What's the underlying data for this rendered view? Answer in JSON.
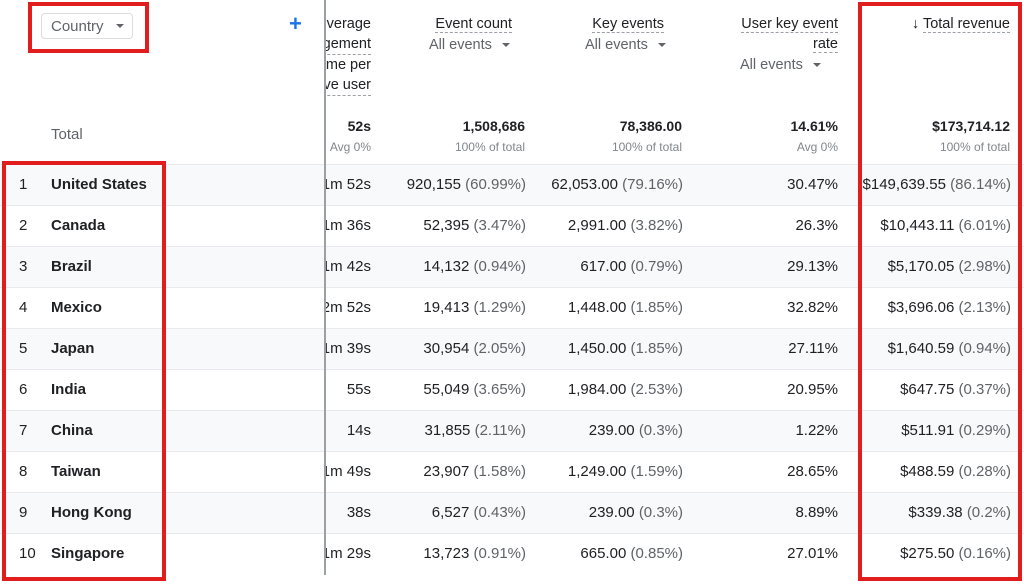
{
  "dimension": {
    "label": "Country"
  },
  "headers": {
    "engagement": [
      "verage",
      "gement",
      "me per",
      "ve user"
    ],
    "event_count": {
      "title": "Event count",
      "filter": "All events"
    },
    "key_events": {
      "title": "Key events",
      "filter": "All events"
    },
    "user_key_event_rate": {
      "title_l1": "User key event",
      "title_l2": "rate",
      "filter": "All events"
    },
    "total_revenue": {
      "arrow": "↓",
      "title": "Total revenue"
    }
  },
  "totals": {
    "label": "Total",
    "engagement": {
      "value": "52s",
      "sub": "Avg 0%"
    },
    "event_count": {
      "value": "1,508,686",
      "sub": "100% of total"
    },
    "key_events": {
      "value": "78,386.00",
      "sub": "100% of total"
    },
    "rate": {
      "value": "14.61%",
      "sub": "Avg 0%"
    },
    "revenue": {
      "value": "$173,714.12",
      "sub": "100% of total"
    }
  },
  "rows": [
    {
      "idx": "1",
      "country": "United States",
      "eng": "1m 52s",
      "ec": "920,155",
      "ecp": "(60.99%)",
      "ke": "62,053.00",
      "kep": "(79.16%)",
      "rate": "30.47%",
      "rev": "$149,639.55",
      "revp": "(86.14%)"
    },
    {
      "idx": "2",
      "country": "Canada",
      "eng": "1m 36s",
      "ec": "52,395",
      "ecp": "(3.47%)",
      "ke": "2,991.00",
      "kep": "(3.82%)",
      "rate": "26.3%",
      "rev": "$10,443.11",
      "revp": "(6.01%)"
    },
    {
      "idx": "3",
      "country": "Brazil",
      "eng": "1m 42s",
      "ec": "14,132",
      "ecp": "(0.94%)",
      "ke": "617.00",
      "kep": "(0.79%)",
      "rate": "29.13%",
      "rev": "$5,170.05",
      "revp": "(2.98%)"
    },
    {
      "idx": "4",
      "country": "Mexico",
      "eng": "2m 52s",
      "ec": "19,413",
      "ecp": "(1.29%)",
      "ke": "1,448.00",
      "kep": "(1.85%)",
      "rate": "32.82%",
      "rev": "$3,696.06",
      "revp": "(2.13%)"
    },
    {
      "idx": "5",
      "country": "Japan",
      "eng": "1m 39s",
      "ec": "30,954",
      "ecp": "(2.05%)",
      "ke": "1,450.00",
      "kep": "(1.85%)",
      "rate": "27.11%",
      "rev": "$1,640.59",
      "revp": "(0.94%)"
    },
    {
      "idx": "6",
      "country": "India",
      "eng": "55s",
      "ec": "55,049",
      "ecp": "(3.65%)",
      "ke": "1,984.00",
      "kep": "(2.53%)",
      "rate": "20.95%",
      "rev": "$647.75",
      "revp": "(0.37%)"
    },
    {
      "idx": "7",
      "country": "China",
      "eng": "14s",
      "ec": "31,855",
      "ecp": "(2.11%)",
      "ke": "239.00",
      "kep": "(0.3%)",
      "rate": "1.22%",
      "rev": "$511.91",
      "revp": "(0.29%)"
    },
    {
      "idx": "8",
      "country": "Taiwan",
      "eng": "1m 49s",
      "ec": "23,907",
      "ecp": "(1.58%)",
      "ke": "1,249.00",
      "kep": "(1.59%)",
      "rate": "28.65%",
      "rev": "$488.59",
      "revp": "(0.28%)"
    },
    {
      "idx": "9",
      "country": "Hong Kong",
      "eng": "38s",
      "ec": "6,527",
      "ecp": "(0.43%)",
      "ke": "239.00",
      "kep": "(0.3%)",
      "rate": "8.89%",
      "rev": "$339.38",
      "revp": "(0.2%)"
    },
    {
      "idx": "10",
      "country": "Singapore",
      "eng": "1m 29s",
      "ec": "13,723",
      "ecp": "(0.91%)",
      "ke": "665.00",
      "kep": "(0.85%)",
      "rate": "27.01%",
      "rev": "$275.50",
      "revp": "(0.16%)"
    }
  ],
  "colors": {
    "highlight": "#e21d1d",
    "accent": "#1a73e8"
  }
}
